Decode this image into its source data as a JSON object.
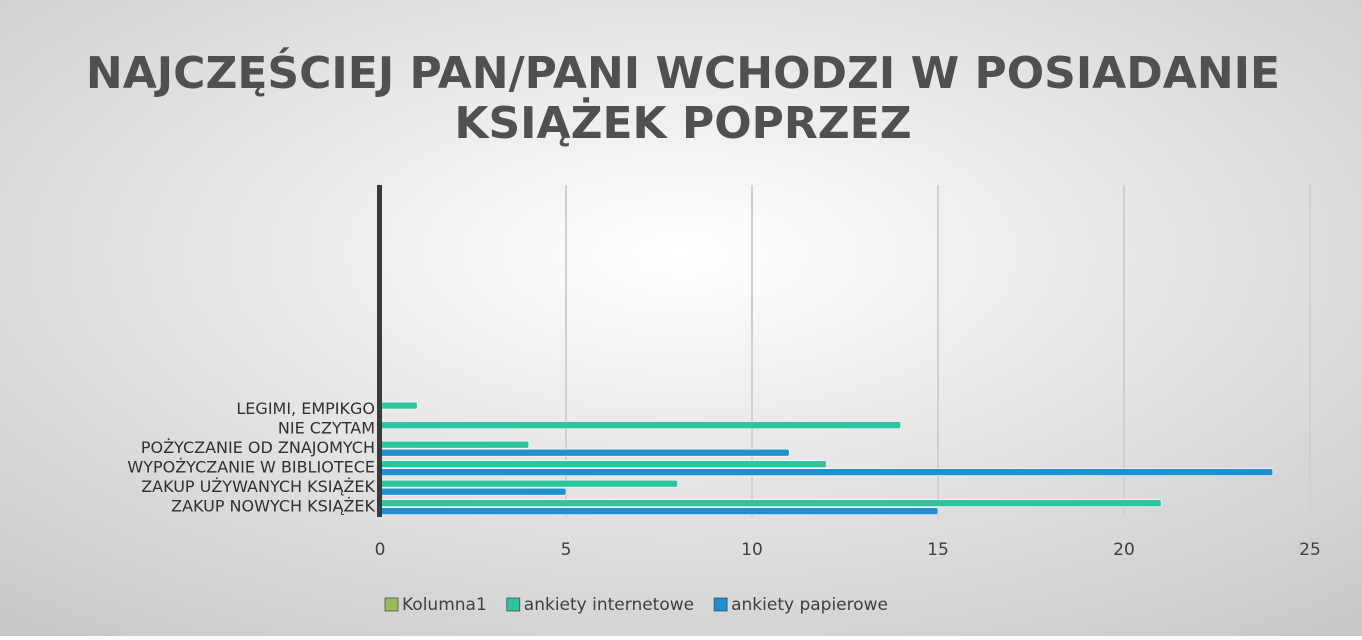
{
  "chart_data": {
    "type": "hbar",
    "title": "NAJCZĘŚCIEJ PAN/PANI WCHODZI W POSIADANIE",
    "title_line2": "KSIĄŻEK POPRZEZ",
    "categories": [
      "ZAKUP NOWYCH KSIĄŻEK",
      "ZAKUP UŻYWANYCH KSIĄŻEK",
      "WYPOŻYCZANIE W BIBLIOTECE",
      "POŻYCZANIE OD ZNAJOMYCH",
      "NIE CZYTAM",
      "LEGIMI, EMPIKGO",
      null,
      null,
      null,
      null,
      null,
      null,
      null,
      null,
      null,
      null,
      null
    ],
    "series": [
      {
        "name": "Kolumna1",
        "color": "#9bbb59",
        "values": [
          null,
          null,
          null,
          null,
          null,
          null,
          null,
          null,
          null,
          null,
          null,
          null,
          null,
          null,
          null,
          null,
          null
        ]
      },
      {
        "name": "ankiety internetowe",
        "color": "#2ec49e",
        "values": [
          21,
          8,
          12,
          4,
          14,
          1,
          null,
          null,
          null,
          null,
          null,
          null,
          null,
          null,
          null,
          null,
          null
        ]
      },
      {
        "name": "ankiety papierowe",
        "color": "#1e90d2",
        "values": [
          15,
          5,
          24,
          11,
          null,
          null,
          null,
          null,
          null,
          null,
          null,
          null,
          null,
          null,
          null,
          null,
          null
        ]
      }
    ],
    "xlim": [
      0,
      25
    ],
    "xticks": [
      0,
      5,
      10,
      15,
      20,
      25
    ],
    "grid": true,
    "legend": "bottom"
  }
}
